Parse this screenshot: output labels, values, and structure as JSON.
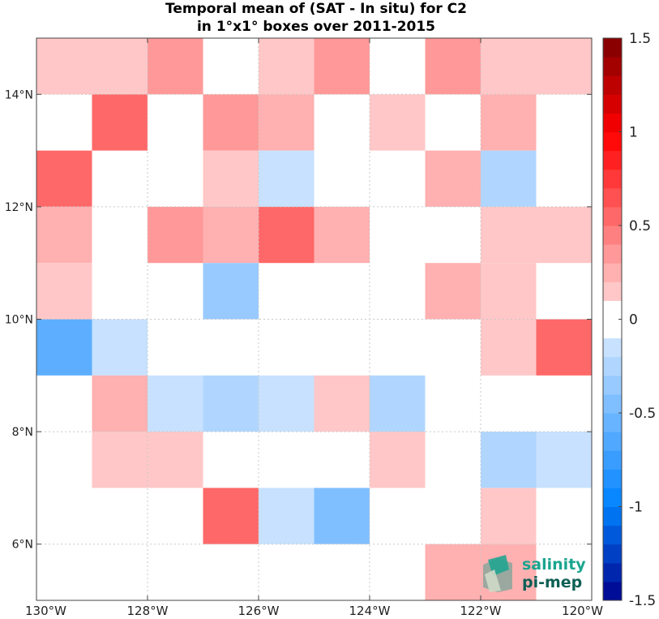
{
  "chart_data": {
    "type": "heatmap",
    "title_line1": "Temporal mean of (SAT - In situ) for C2",
    "title_line2": "in 1°x1° boxes over 2011-2015",
    "xlim": [
      -130,
      -120
    ],
    "ylim": [
      5,
      15
    ],
    "x_ticks": [
      {
        "value": -130,
        "label": "130°W"
      },
      {
        "value": -128,
        "label": "128°W"
      },
      {
        "value": -126,
        "label": "126°W"
      },
      {
        "value": -124,
        "label": "124°W"
      },
      {
        "value": -122,
        "label": "122°W"
      },
      {
        "value": -120,
        "label": "120°W"
      }
    ],
    "y_ticks": [
      {
        "value": 6,
        "label": "6°N"
      },
      {
        "value": 8,
        "label": "8°N"
      },
      {
        "value": 10,
        "label": "10°N"
      },
      {
        "value": 12,
        "label": "12°N"
      },
      {
        "value": 14,
        "label": "14°N"
      }
    ],
    "grid": true,
    "cells": [
      {
        "lon": -130,
        "lat": 14,
        "value": 0.15
      },
      {
        "lon": -129,
        "lat": 14,
        "value": 0.15
      },
      {
        "lon": -128,
        "lat": 14,
        "value": 0.35
      },
      {
        "lon": -126,
        "lat": 14,
        "value": 0.15
      },
      {
        "lon": -125,
        "lat": 14,
        "value": 0.35
      },
      {
        "lon": -123,
        "lat": 14,
        "value": 0.35
      },
      {
        "lon": -122,
        "lat": 14,
        "value": 0.15
      },
      {
        "lon": -121,
        "lat": 14,
        "value": 0.15
      },
      {
        "lon": -129,
        "lat": 13,
        "value": 0.55
      },
      {
        "lon": -127,
        "lat": 13,
        "value": 0.35
      },
      {
        "lon": -126,
        "lat": 13,
        "value": 0.25
      },
      {
        "lon": -124,
        "lat": 13,
        "value": 0.15
      },
      {
        "lon": -122,
        "lat": 13,
        "value": 0.25
      },
      {
        "lon": -130,
        "lat": 12,
        "value": 0.55
      },
      {
        "lon": -127,
        "lat": 12,
        "value": 0.15
      },
      {
        "lon": -126,
        "lat": 12,
        "value": -0.15
      },
      {
        "lon": -123,
        "lat": 12,
        "value": 0.25
      },
      {
        "lon": -122,
        "lat": 12,
        "value": -0.25
      },
      {
        "lon": -130,
        "lat": 11,
        "value": 0.25
      },
      {
        "lon": -128,
        "lat": 11,
        "value": 0.35
      },
      {
        "lon": -127,
        "lat": 11,
        "value": 0.25
      },
      {
        "lon": -126,
        "lat": 11,
        "value": 0.55
      },
      {
        "lon": -125,
        "lat": 11,
        "value": 0.25
      },
      {
        "lon": -122,
        "lat": 11,
        "value": 0.15
      },
      {
        "lon": -121,
        "lat": 11,
        "value": 0.15
      },
      {
        "lon": -130,
        "lat": 10,
        "value": 0.15
      },
      {
        "lon": -127,
        "lat": 10,
        "value": -0.35
      },
      {
        "lon": -123,
        "lat": 10,
        "value": 0.25
      },
      {
        "lon": -122,
        "lat": 10,
        "value": 0.15
      },
      {
        "lon": -130,
        "lat": 9,
        "value": -0.6
      },
      {
        "lon": -129,
        "lat": 9,
        "value": -0.15
      },
      {
        "lon": -122,
        "lat": 9,
        "value": 0.15
      },
      {
        "lon": -121,
        "lat": 9,
        "value": 0.55
      },
      {
        "lon": -129,
        "lat": 8,
        "value": 0.25
      },
      {
        "lon": -128,
        "lat": 8,
        "value": -0.15
      },
      {
        "lon": -127,
        "lat": 8,
        "value": -0.25
      },
      {
        "lon": -126,
        "lat": 8,
        "value": -0.15
      },
      {
        "lon": -125,
        "lat": 8,
        "value": 0.15
      },
      {
        "lon": -124,
        "lat": 8,
        "value": -0.25
      },
      {
        "lon": -129,
        "lat": 7,
        "value": 0.15
      },
      {
        "lon": -128,
        "lat": 7,
        "value": 0.15
      },
      {
        "lon": -124,
        "lat": 7,
        "value": 0.15
      },
      {
        "lon": -122,
        "lat": 7,
        "value": -0.25
      },
      {
        "lon": -121,
        "lat": 7,
        "value": -0.15
      },
      {
        "lon": -127,
        "lat": 6,
        "value": 0.55
      },
      {
        "lon": -126,
        "lat": 6,
        "value": -0.15
      },
      {
        "lon": -125,
        "lat": 6,
        "value": -0.45
      },
      {
        "lon": -122,
        "lat": 6,
        "value": 0.15
      },
      {
        "lon": -123,
        "lat": 5,
        "value": 0.25
      },
      {
        "lon": -122,
        "lat": 5,
        "value": 0.25
      }
    ],
    "colorbar": {
      "min": -1.5,
      "max": 1.5,
      "step": 0.1,
      "ticks": [
        {
          "value": 1.5,
          "label": "1.5"
        },
        {
          "value": 1,
          "label": "1"
        },
        {
          "value": 0.5,
          "label": "0.5"
        },
        {
          "value": 0,
          "label": "0"
        },
        {
          "value": -0.5,
          "label": "-0.5"
        },
        {
          "value": -1,
          "label": "-1"
        },
        {
          "value": -1.5,
          "label": "-1.5"
        }
      ]
    }
  },
  "logo": {
    "line1": "salinity",
    "line2": "pi-mep",
    "color1": "#1aa58f",
    "color2": "#0d5f55"
  }
}
